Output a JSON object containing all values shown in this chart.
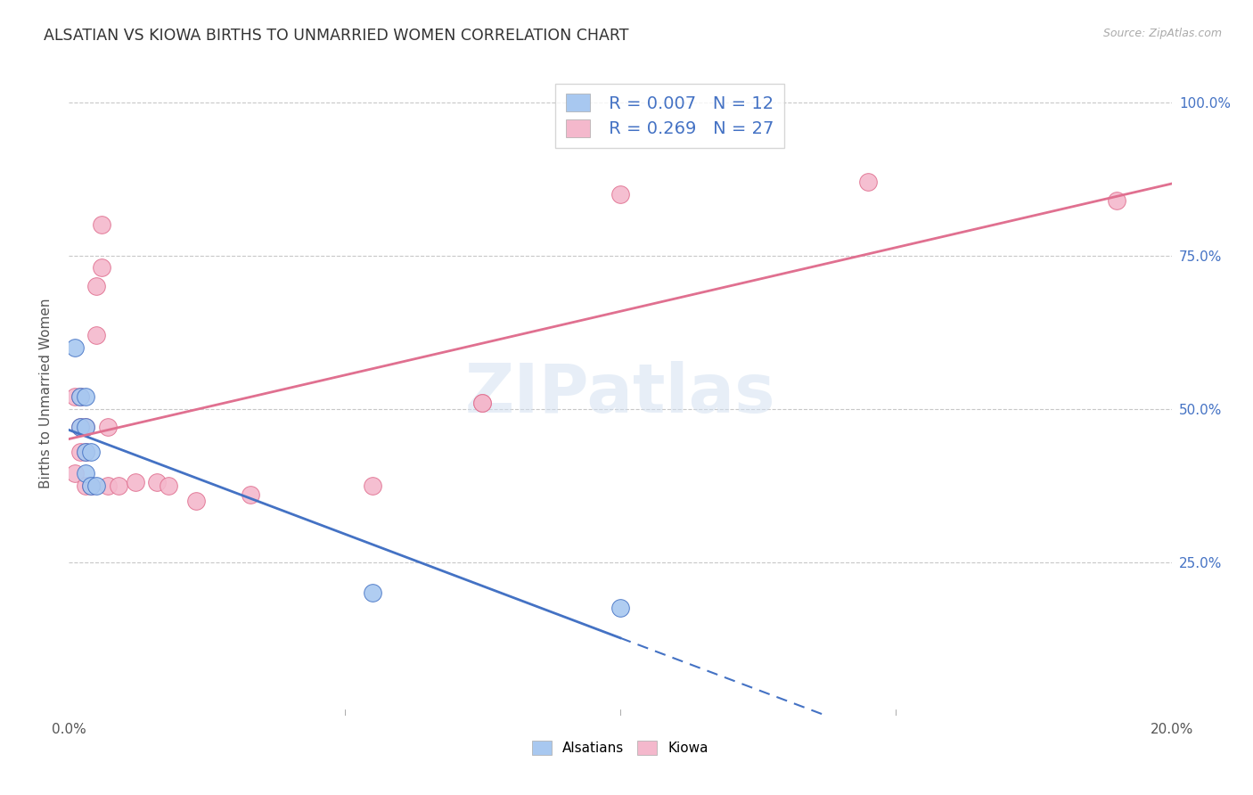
{
  "title": "ALSATIAN VS KIOWA BIRTHS TO UNMARRIED WOMEN CORRELATION CHART",
  "source": "Source: ZipAtlas.com",
  "ylabel": "Births to Unmarried Women",
  "xlim": [
    0.0,
    0.2
  ],
  "ylim": [
    0.0,
    1.05
  ],
  "ytick_labels": [
    "25.0%",
    "50.0%",
    "75.0%",
    "100.0%"
  ],
  "ytick_values": [
    0.25,
    0.5,
    0.75,
    1.0
  ],
  "alsatians_color": "#a8c8f0",
  "kiowa_color": "#f4b8cc",
  "alsatians_edge_color": "#4472c4",
  "kiowa_edge_color": "#e07090",
  "alsatians_line_color": "#4472c4",
  "kiowa_line_color": "#e07090",
  "alsatians_R": 0.007,
  "alsatians_N": 12,
  "kiowa_R": 0.269,
  "kiowa_N": 27,
  "alsatians_x": [
    0.001,
    0.002,
    0.002,
    0.003,
    0.003,
    0.003,
    0.003,
    0.004,
    0.004,
    0.005,
    0.055,
    0.1
  ],
  "alsatians_y": [
    0.6,
    0.52,
    0.47,
    0.52,
    0.47,
    0.43,
    0.395,
    0.43,
    0.375,
    0.375,
    0.2,
    0.175
  ],
  "kiowa_x": [
    0.001,
    0.001,
    0.002,
    0.002,
    0.002,
    0.003,
    0.003,
    0.003,
    0.004,
    0.005,
    0.005,
    0.006,
    0.006,
    0.007,
    0.007,
    0.009,
    0.012,
    0.016,
    0.018,
    0.023,
    0.033,
    0.055,
    0.075,
    0.075,
    0.1,
    0.145,
    0.19
  ],
  "kiowa_y": [
    0.52,
    0.395,
    0.52,
    0.47,
    0.43,
    0.47,
    0.43,
    0.375,
    0.375,
    0.7,
    0.62,
    0.8,
    0.73,
    0.375,
    0.47,
    0.375,
    0.38,
    0.38,
    0.375,
    0.35,
    0.36,
    0.375,
    0.51,
    0.51,
    0.85,
    0.87,
    0.84
  ],
  "watermark": "ZIPatlas",
  "background_color": "#ffffff",
  "grid_color": "#c8c8c8",
  "right_axis_color": "#4472c4",
  "legend_R_color": "#4472c4",
  "legend_N_color": "#333333"
}
